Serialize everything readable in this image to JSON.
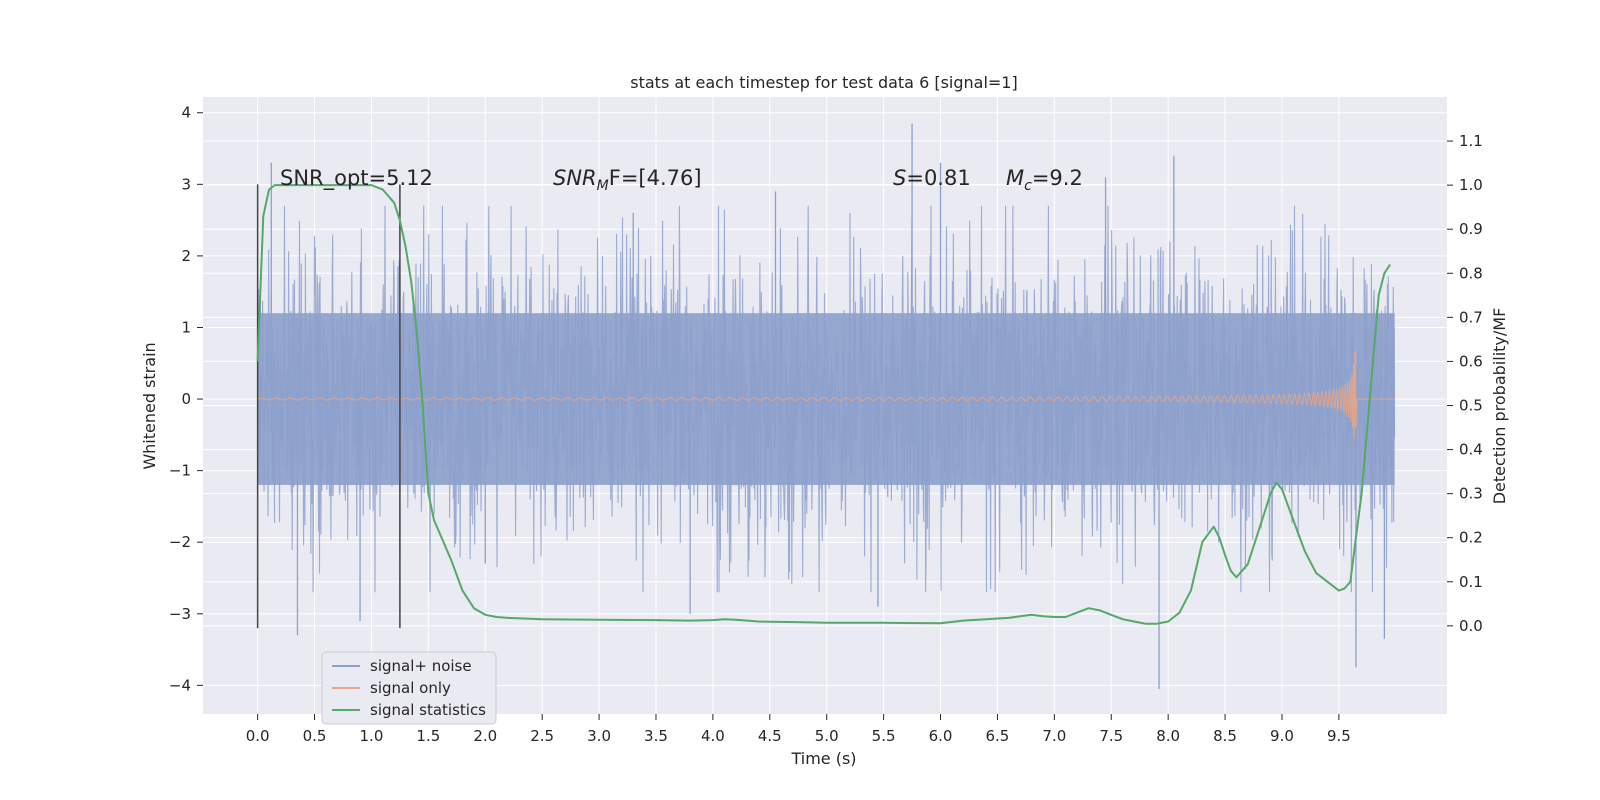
{
  "chart_data": {
    "type": "line",
    "title": "stats at each timestep for test data 6 [signal=1]",
    "xlabel": "Time (s)",
    "ylabel": "Whitened strain",
    "ylabel_right": "Detection probability/MF",
    "xlim": [
      -0.48,
      10.45
    ],
    "ylim": [
      -4.4,
      4.22
    ],
    "ylim_right": [
      -0.2,
      1.2
    ],
    "x_ticks": [
      "0.0",
      "0.5",
      "1.0",
      "1.5",
      "2.0",
      "2.5",
      "3.0",
      "3.5",
      "4.0",
      "4.5",
      "5.0",
      "5.5",
      "6.0",
      "6.5",
      "7.0",
      "7.5",
      "8.0",
      "8.5",
      "9.0",
      "9.5"
    ],
    "y_ticks": [
      "4",
      "3",
      "2",
      "1",
      "0",
      "−1",
      "−2",
      "−3",
      "−4"
    ],
    "y_ticks_right": [
      "1.1",
      "1.0",
      "0.9",
      "0.8",
      "0.7",
      "0.6",
      "0.5",
      "0.4",
      "0.3",
      "0.2",
      "0.1",
      "0.0"
    ],
    "grid": true,
    "annotations": [
      {
        "id": "snr_opt",
        "text": "SNR_opt=5.12",
        "x": 0.2,
        "y": 3.1
      },
      {
        "id": "snr_mf",
        "pre": "SNR",
        "sub": "M",
        "post": "F=[4.76]",
        "x": 2.6,
        "y": 3.1
      },
      {
        "id": "s",
        "pre": "S",
        "post": "=0.81",
        "x": 5.6,
        "y": 3.1
      },
      {
        "id": "mc",
        "pre": "M",
        "sub": "c",
        "post": "=9.2",
        "x": 6.6,
        "y": 3.1
      }
    ],
    "vertical_markers": [
      {
        "x": 0.0,
        "y_range": [
          -3.2,
          3.0
        ]
      },
      {
        "x": 1.25,
        "y_range": [
          -3.2,
          3.0
        ]
      }
    ],
    "legend_position": "lower-left",
    "series": [
      {
        "name": "signal+ noise",
        "color": "#8da0cb",
        "description_range": [
          0.0,
          9.99
        ],
        "envelope_typical": 1.2,
        "peaks": [
          [
            0.12,
            3.3
          ],
          [
            0.35,
            -3.3
          ],
          [
            0.9,
            -3.1
          ],
          [
            1.25,
            -2.2
          ],
          [
            2.0,
            -2.3
          ],
          [
            3.3,
            2.6
          ],
          [
            3.8,
            -3.0
          ],
          [
            4.55,
            2.9
          ],
          [
            5.45,
            -2.9
          ],
          [
            5.75,
            3.85
          ],
          [
            6.0,
            3.3
          ],
          [
            7.45,
            3.1
          ],
          [
            7.92,
            -4.05
          ],
          [
            8.05,
            3.4
          ],
          [
            9.65,
            -3.75
          ],
          [
            9.9,
            -3.35
          ]
        ]
      },
      {
        "name": "signal only",
        "color": "#e5a58a",
        "chirp_amplitude_end": 0.7,
        "merger_time": 9.65
      },
      {
        "name": "signal statistics",
        "color": "#55a868",
        "axis": "right",
        "x": [
          0.0,
          0.05,
          0.1,
          0.15,
          0.2,
          0.4,
          0.6,
          0.8,
          1.0,
          1.1,
          1.2,
          1.25,
          1.3,
          1.35,
          1.4,
          1.45,
          1.5,
          1.55,
          1.6,
          1.7,
          1.8,
          1.9,
          2.0,
          2.1,
          2.2,
          2.5,
          3.0,
          3.5,
          3.8,
          4.0,
          4.1,
          4.2,
          4.4,
          4.8,
          5.0,
          5.5,
          6.0,
          6.2,
          6.4,
          6.6,
          6.7,
          6.8,
          6.9,
          7.0,
          7.1,
          7.2,
          7.3,
          7.4,
          7.5,
          7.6,
          7.7,
          7.8,
          7.9,
          8.0,
          8.1,
          8.2,
          8.3,
          8.4,
          8.45,
          8.5,
          8.55,
          8.6,
          8.7,
          8.8,
          8.9,
          8.95,
          9.0,
          9.1,
          9.2,
          9.3,
          9.4,
          9.5,
          9.55,
          9.6,
          9.65,
          9.7,
          9.75,
          9.8,
          9.85,
          9.9,
          9.95
        ],
        "values": [
          0.6,
          0.93,
          0.99,
          1.0,
          1.0,
          1.0,
          1.0,
          1.0,
          1.0,
          0.99,
          0.96,
          0.92,
          0.86,
          0.78,
          0.66,
          0.5,
          0.3,
          0.24,
          0.21,
          0.15,
          0.08,
          0.04,
          0.025,
          0.02,
          0.018,
          0.015,
          0.014,
          0.013,
          0.012,
          0.013,
          0.015,
          0.014,
          0.01,
          0.008,
          0.007,
          0.007,
          0.006,
          0.012,
          0.015,
          0.018,
          0.022,
          0.025,
          0.022,
          0.02,
          0.02,
          0.03,
          0.04,
          0.035,
          0.025,
          0.015,
          0.01,
          0.005,
          0.005,
          0.01,
          0.03,
          0.08,
          0.19,
          0.225,
          0.2,
          0.16,
          0.125,
          0.11,
          0.14,
          0.22,
          0.3,
          0.325,
          0.31,
          0.24,
          0.17,
          0.12,
          0.1,
          0.08,
          0.085,
          0.1,
          0.2,
          0.3,
          0.45,
          0.6,
          0.75,
          0.8,
          0.82
        ]
      }
    ]
  }
}
